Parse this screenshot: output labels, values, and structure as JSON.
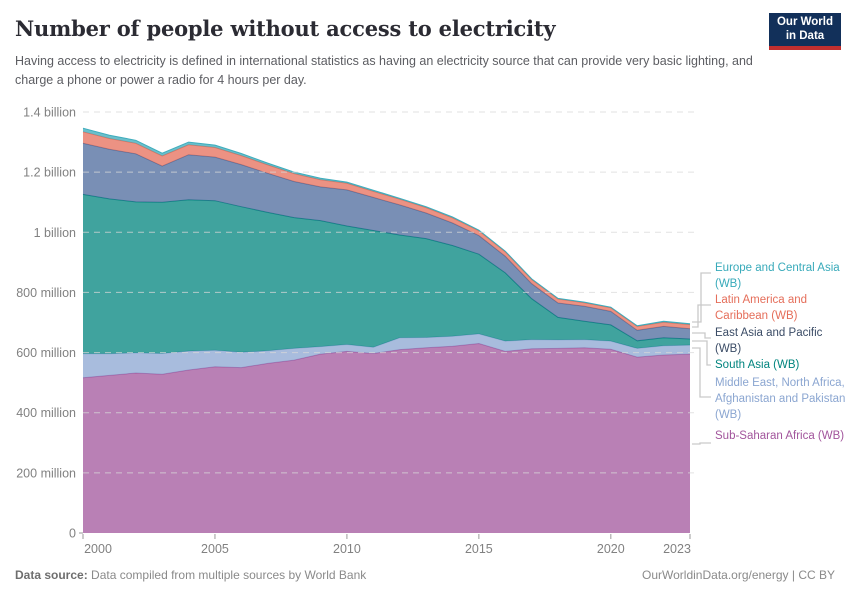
{
  "header": {
    "title": "Number of people without access to electricity",
    "subtitle": "Having access to electricity is defined in international statistics as having an electricity source that can provide very basic lighting, and charge a phone or power a radio for 4 hours per day.",
    "logo": {
      "line1": "Our World",
      "line2": "in Data"
    }
  },
  "footer": {
    "datasource_label": "Data source:",
    "datasource_text": "Data compiled from multiple sources by World Bank",
    "link_text": "OurWorldinData.org/energy",
    "license_text": "| CC BY"
  },
  "colors": {
    "background": "#ffffff",
    "title": "#2b2b33",
    "subtitle": "#5c5d62",
    "axis_text": "#818181",
    "gridline": "#d8d8d8",
    "tick": "#9a9a9a",
    "connector": "#c9c9c9",
    "logo_bg": "#12305a",
    "logo_red": "#c22f2f"
  },
  "chart_data": {
    "type": "area",
    "stacked": true,
    "title": "Number of people without access to electricity",
    "unit": "people",
    "x": [
      2000,
      2001,
      2002,
      2003,
      2004,
      2005,
      2006,
      2007,
      2008,
      2009,
      2010,
      2011,
      2012,
      2013,
      2014,
      2015,
      2016,
      2017,
      2018,
      2019,
      2020,
      2021,
      2022,
      2023
    ],
    "series": [
      {
        "name": "Sub-Saharan Africa (WB)",
        "color": "#a2559c",
        "values_millions": [
          516,
          524,
          532,
          528,
          542,
          553,
          550,
          564,
          575,
          595,
          604,
          597,
          610,
          616,
          621,
          630,
          604,
          613,
          614,
          616,
          611,
          585,
          592,
          595
        ]
      },
      {
        "name": "Middle East, North Africa, Afghanistan and Pakistan (WB)",
        "color": "#8ba6d1",
        "values_millions": [
          80,
          72,
          67,
          69,
          63,
          55,
          51,
          42,
          39,
          25,
          23,
          21,
          39,
          34,
          33,
          32,
          34,
          30,
          28,
          27,
          27,
          29,
          31,
          30
        ]
      },
      {
        "name": "South Asia (WB)",
        "color": "#00847e",
        "values_millions": [
          530,
          515,
          502,
          503,
          503,
          497,
          484,
          460,
          435,
          419,
          394,
          388,
          342,
          329,
          302,
          265,
          227,
          136,
          75,
          61,
          54,
          25,
          26,
          20
        ]
      },
      {
        "name": "East Asia and Pacific (WB)",
        "color": "#4c6a9c",
        "values_millions": [
          170,
          165,
          160,
          120,
          150,
          145,
          140,
          130,
          120,
          112,
          120,
          110,
          100,
          85,
          75,
          62,
          55,
          50,
          48,
          50,
          45,
          35,
          38,
          34
        ]
      },
      {
        "name": "Latin America and Caribbean (WB)",
        "color": "#e56e5a",
        "values_millions": [
          38,
          36,
          35,
          34,
          33,
          32,
          30,
          28,
          26,
          24,
          22,
          20,
          19,
          18,
          17,
          16,
          15,
          14,
          13,
          12,
          12,
          13,
          14,
          14
        ]
      },
      {
        "name": "Europe and Central Asia (WB)",
        "color": "#38aaba",
        "values_millions": [
          12,
          11,
          10,
          9,
          9,
          8,
          7,
          6,
          5,
          5,
          4,
          4,
          3,
          3,
          3,
          2,
          2,
          2,
          2,
          2,
          2,
          2,
          3,
          3
        ]
      }
    ],
    "ylim": [
      0,
      1400
    ],
    "yticks": [
      {
        "value": 0,
        "label": "0"
      },
      {
        "value": 200,
        "label": "200 million"
      },
      {
        "value": 400,
        "label": "400 million"
      },
      {
        "value": 600,
        "label": "600 million"
      },
      {
        "value": 800,
        "label": "800 million"
      },
      {
        "value": 1000,
        "label": "1 billion"
      },
      {
        "value": 1200,
        "label": "1.2 billion"
      },
      {
        "value": 1400,
        "label": "1.4 billion"
      }
    ],
    "xticks": [
      {
        "value": 2000,
        "label": "2000"
      },
      {
        "value": 2005,
        "label": "2005"
      },
      {
        "value": 2010,
        "label": "2010"
      },
      {
        "value": 2015,
        "label": "2015"
      },
      {
        "value": 2020,
        "label": "2020"
      },
      {
        "value": 2023,
        "label": "2023"
      }
    ],
    "grid": "horizontal-dashed",
    "legend_position": "right"
  },
  "legend": {
    "items": [
      {
        "label": "Europe and Central Asia (WB)",
        "color": "#38aaba"
      },
      {
        "label": "Latin America and Caribbean (WB)",
        "color": "#e56e5a"
      },
      {
        "label": "East Asia and Pacific (WB)",
        "color": "#3b4c66"
      },
      {
        "label": "South Asia (WB)",
        "color": "#00847e"
      },
      {
        "label": "Middle East, North Africa, Afghanistan and Pakistan (WB)",
        "color": "#8ba6d1"
      },
      {
        "label": "Sub-Saharan Africa (WB)",
        "color": "#a2559c"
      }
    ]
  }
}
